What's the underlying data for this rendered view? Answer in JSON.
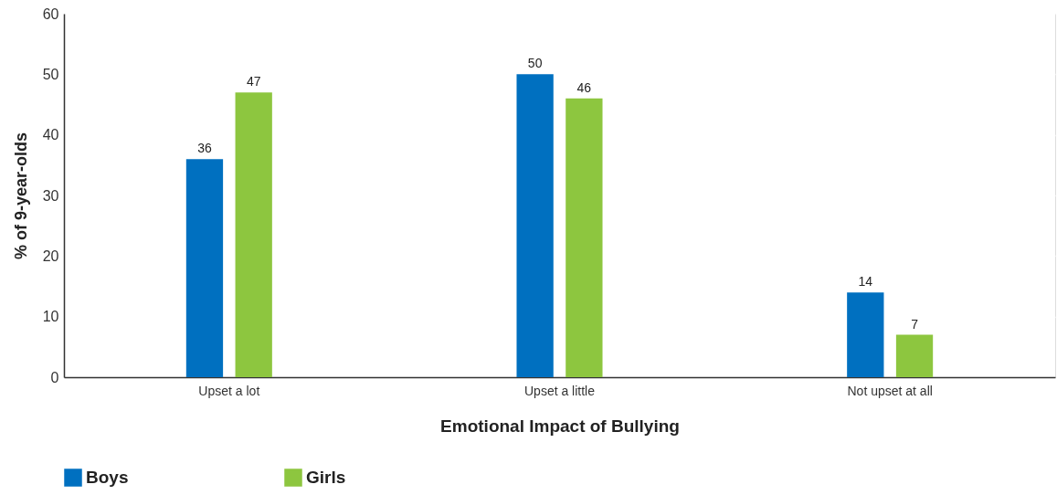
{
  "chart_data": {
    "type": "bar",
    "xlabel": "Emotional Impact of Bullying",
    "ylabel": "% of 9-year-olds",
    "categories": [
      "Upset a lot",
      "Upset a little",
      "Not upset at all"
    ],
    "series": [
      {
        "name": "Boys",
        "color": "#0070c0",
        "values": [
          36,
          50,
          14
        ]
      },
      {
        "name": "Girls",
        "color": "#8dc63f",
        "values": [
          47,
          46,
          7
        ]
      }
    ],
    "ylim": [
      0,
      60
    ],
    "yticks": [
      0,
      10,
      20,
      30,
      40,
      50,
      60
    ],
    "grid": "y",
    "legend": "bottom left",
    "data_labels": true
  }
}
